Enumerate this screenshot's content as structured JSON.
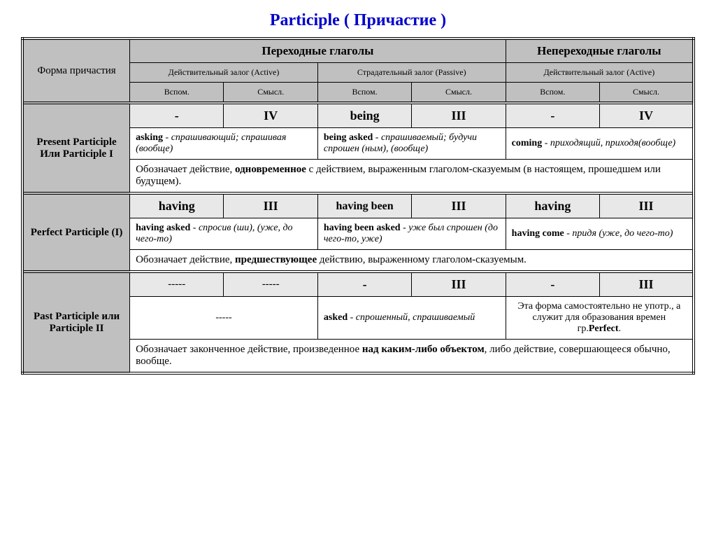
{
  "title": "Participle  ( Причастие )",
  "header": {
    "rowLabel": "Форма причастия",
    "transitive": "Переходные глаголы",
    "intransitive": "Непереходные глаголы",
    "active": "Действительный залог (Active)",
    "passive": "Страдательный залог (Passive)",
    "active2": "Действительный залог (Active)",
    "aux": "Вспом.",
    "sem": "Смысл."
  },
  "present": {
    "label": "Present Participle Или Participle I",
    "aux1": "-",
    "sem1": "IV",
    "aux2": "being",
    "sem2": "III",
    "aux3": "-",
    "sem3": "IV",
    "ex1_html": "<b>asking</b> - <i>спрашивающий; спрашивая</i> (вообще)",
    "ex2_html": "<b>being asked</b> - <i>спрашиваемый; будучи спрошен (ным),</i> (вообще)",
    "ex3_html": "<b>coming</b> - <i>приходящий, приходя</i>(вообще)",
    "note_html": "Обозначает действие, <b>одновременное</b> с действием, выраженным глаголом-сказуемым (в настоящем, прошедшем или будущем)."
  },
  "perfect": {
    "label": "Perfect Participle (I)",
    "aux1": "having",
    "sem1": "III",
    "aux2": "having been",
    "sem2": "III",
    "aux3": "having",
    "sem3": "III",
    "ex1_html": "<b>having asked</b> - <i>спросив (ши)</i>, (уже, до чего-то)",
    "ex2_html": "<b>having been asked</b> - <i>уже был спрошен</i> (до чего-то, уже)",
    "ex3_html": "<b>having come</b> - <i>придя</i> (уже, до чего-то)",
    "note_html": "Обозначает действие, <b>предшествующее</b> действию, выраженному глаголом-сказуемым."
  },
  "past": {
    "label": "Past Participle или Participle II",
    "aux1": "-----",
    "sem1": "-----",
    "aux2": "-",
    "sem2": "III",
    "aux3": "-",
    "sem3": "III",
    "ex1_html": "-----",
    "ex2_html": "<b>asked</b> - <i>спрошенный, спрашиваемый</i>",
    "ex3_html": "Эта форма самостоятельно не употр., а служит для образования времен гр.<b>Perfect</b>.",
    "note_html": "Обозначает законченное действие, произведенное <b>над каким-либо объектом</b>, либо действие, совершающееся обычно, вообще."
  }
}
